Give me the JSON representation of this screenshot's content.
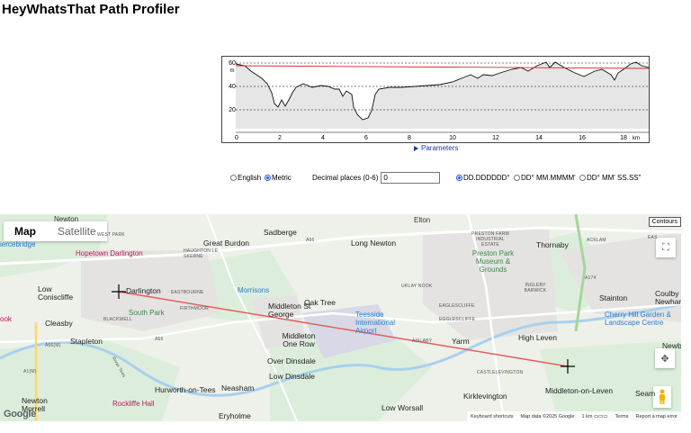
{
  "page": {
    "title": "HeyWhatsThat Path Profiler"
  },
  "profile": {
    "y_ticks": [
      "60",
      "40",
      "20",
      "0"
    ],
    "y_unit": "m",
    "x_ticks": [
      "0",
      "2",
      "4",
      "6",
      "8",
      "10",
      "12",
      "14",
      "16",
      "18"
    ],
    "x_unit": "km",
    "parameters_label": "Parameters"
  },
  "units": {
    "english_label": "English",
    "metric_label": "Metric",
    "metric_selected": true,
    "decimal_label": "Decimal places (0-6)",
    "decimal_value": "0",
    "coord_format_1": "DD.DDDDDD°",
    "coord_format_2": "DD° MM.MMMM'",
    "coord_format_3": "DD° MM' SS.SS\"",
    "coord_format_selected": 1
  },
  "map": {
    "type_map": "Map",
    "type_satellite": "Satellite",
    "contours_label": "Contours",
    "attribution": {
      "shortcuts": "Keyboard shortcuts",
      "data": "Map data ©2025 Google",
      "scale": "1 km",
      "terms": "Terms",
      "report": "Report a map error"
    },
    "logo": "Google",
    "places": {
      "newton": "Newton",
      "piercebridge": "iercebridge",
      "west_park": "WEST PARK",
      "hopetown": "Hopetown Darlington",
      "great_burdon": "Great Burdon",
      "haughton": "HAUGHTON LE SKERNE",
      "sadberge": "Sadberge",
      "long_newton": "Long Newton",
      "elton": "Elton",
      "preston_farm": "PRESTON FARM INDUSTRIAL ESTATE",
      "preston_park": "Preston Park Museum & Grounds",
      "thornaby": "Thornaby",
      "acklam": "ACKLAM",
      "east": "EAS",
      "low_coniscliffe": "Low Coniscliffe",
      "darlington": "Darlington",
      "eastbourne": "EASTBOURNE",
      "morrisons": "Morrisons",
      "oak_tree": "Oak Tree",
      "urlay_nook": "URLAY NOOK",
      "ingleby": "INGLEBY BARWICK",
      "stainton": "Stainton",
      "coulby": "Coulby Newhan",
      "south_park": "South Park",
      "firthmoor": "FIRTHMOOR",
      "middleton_st_george": "Middleton St George",
      "teesside": "Teesside International Airport",
      "egglescliffe_caps": "EAGLESCLIFFE",
      "egglescliffe_caps2": "EGGLESCLIFFE",
      "cherry_hill": "Cherry Hill Garden & Landscape Centre",
      "ook": "ook",
      "cleasby": "Cleasby",
      "blackwell": "BLACKWELL",
      "stapleton": "Stapleton",
      "middleton_one_row": "Middleton One Row",
      "aislaby": "AISLABY",
      "yarm": "Yarm",
      "high_leven": "High Leven",
      "newb": "Newb",
      "over_dinsdale": "Over Dinsdale",
      "low_dinsdale": "Low Dinsdale",
      "castlelevington": "CASTLELEVINGTON",
      "middleton_on_leven": "Middleton-on-Leven",
      "seam": "Seam",
      "hurworth": "Hurworth-on-Tees",
      "neasham": "Neasham",
      "rockliffe": "Rockliffe Hall",
      "kirklevington": "Kirklevington",
      "newton_morrell": "Newton Morrell",
      "low_worsall": "Low Worsall",
      "eryholme": "Eryholme",
      "river_tees": "River Tees",
      "a66_1": "A66",
      "a66_2": "A66",
      "a66m": "A66(M)",
      "a1m": "A1(M)",
      "a174": "A174"
    }
  }
}
